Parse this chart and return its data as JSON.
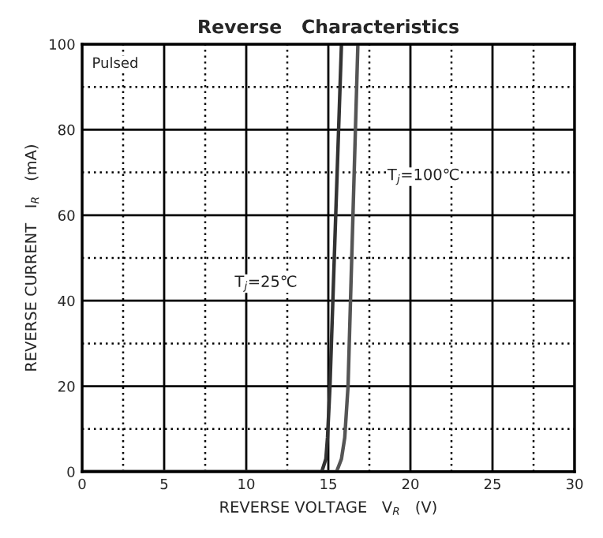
{
  "chart_data": {
    "type": "line",
    "title": "Reverse   Characteristics",
    "xlabel": "REVERSE VOLTAGE   V$_{R}$   (V)",
    "ylabel": "REVERSE CURRENT   I$_{R}$   (mA)",
    "annotations": [
      "Pulsed"
    ],
    "series": [
      {
        "name": "T$_{j}$=25℃",
        "color": "#333333",
        "x": [
          0,
          14.6,
          14.85,
          14.95,
          15.1,
          15.8
        ],
        "values": [
          0,
          0,
          3,
          8,
          20,
          100
        ]
      },
      {
        "name": "T$_{j}$=100℃",
        "color": "#555555",
        "x": [
          0,
          15.5,
          15.8,
          16.0,
          16.2,
          16.8
        ],
        "values": [
          0,
          0,
          3,
          8,
          20,
          100
        ]
      }
    ],
    "xlim": [
      0,
      30
    ],
    "xticks": [
      0,
      5,
      10,
      15,
      20,
      25,
      30
    ],
    "ylim": [
      0,
      100
    ],
    "yticks": [
      0,
      20,
      40,
      60,
      80,
      100
    ],
    "grid": true,
    "line_style": "solid",
    "marker": "none"
  }
}
